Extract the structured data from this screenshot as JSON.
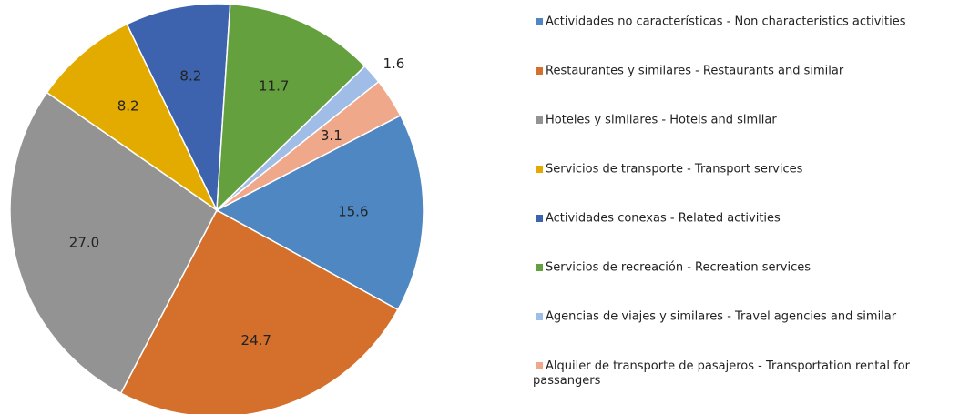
{
  "chart_data": {
    "type": "pie",
    "categories": [
      "Actividades no características - Non characteristics activities",
      "Restaurantes y similares - Restaurants and similar",
      "Hoteles y similares - Hotels and similar",
      "Servicios de transporte - Transport services",
      "Actividades conexas - Related activities",
      "Servicios de recreación - Recreation services",
      "Agencias de viajes y similares - Travel agencies and similar",
      "Alquiler de transporte de pasajeros - Transportation rental for passangers"
    ],
    "values": [
      15.6,
      24.7,
      27.0,
      8.2,
      8.2,
      11.7,
      1.6,
      3.1
    ],
    "value_labels": [
      "15.6",
      "24.7",
      "27.0",
      "8.2",
      "8.2",
      "11.7",
      "1.6",
      "3.1"
    ],
    "colors": [
      "#4f87c2",
      "#d4702b",
      "#939393",
      "#e3ab00",
      "#3d62ae",
      "#65a03f",
      "#9fbde6",
      "#f0a88a"
    ],
    "legend": "right"
  }
}
